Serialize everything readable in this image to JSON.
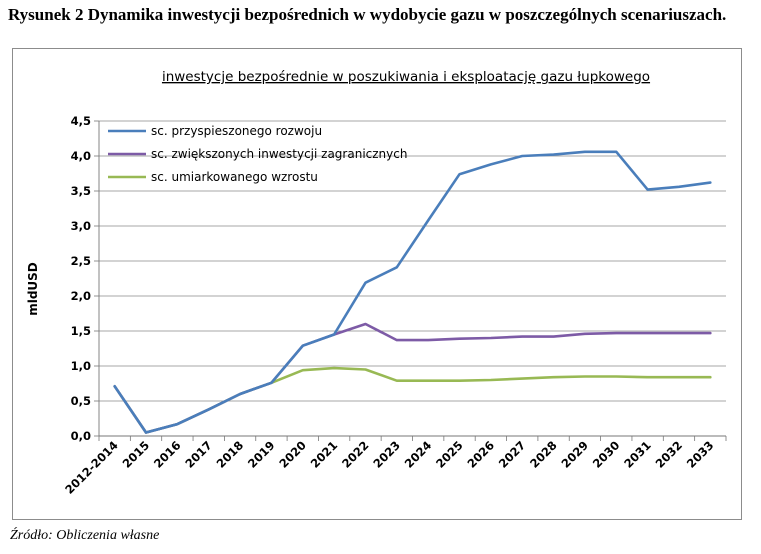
{
  "figure": {
    "caption": "Rysunek 2 Dynamika inwestycji bezpośrednich w wydobycie gazu w poszczególnych scenariuszach.",
    "source": "Źródło: Obliczenia własne"
  },
  "chart_data": {
    "type": "line",
    "title": "inwestycje bezpośrednie w poszukiwania i eksploatację gazu łupkowego",
    "xlabel": "",
    "ylabel": "mldUSD",
    "ylim": [
      0,
      4.5
    ],
    "yticks": [
      "0,0",
      "0,5",
      "1,0",
      "1,5",
      "2,0",
      "2,5",
      "3,0",
      "3,5",
      "4,0",
      "4,5"
    ],
    "grid": true,
    "legend_position": "top-left",
    "categories": [
      "2012-2014",
      "2015",
      "2016",
      "2017",
      "2018",
      "2019",
      "2020",
      "2021",
      "2022",
      "2023",
      "2024",
      "2025",
      "2026",
      "2027",
      "2028",
      "2029",
      "2030",
      "2031",
      "2032",
      "2033"
    ],
    "series": [
      {
        "name": "sc. przyspieszonego rozwoju",
        "color": "#4a7ebb",
        "values": [
          0.71,
          0.05,
          0.17,
          0.38,
          0.6,
          0.76,
          1.29,
          1.45,
          2.19,
          2.41,
          3.08,
          3.74,
          3.88,
          4.0,
          4.02,
          4.06,
          4.06,
          3.52,
          3.56,
          3.62
        ]
      },
      {
        "name": "sc. zwiększonych inwestycji zagranicznych",
        "color": "#7d5ba6",
        "values": [
          0.71,
          0.05,
          0.17,
          0.38,
          0.6,
          0.76,
          1.29,
          1.45,
          1.6,
          1.37,
          1.37,
          1.39,
          1.4,
          1.42,
          1.42,
          1.46,
          1.47,
          1.47,
          1.47,
          1.47
        ]
      },
      {
        "name": "sc. umiarkowanego wzrostu",
        "color": "#98b954",
        "values": [
          0.71,
          0.05,
          0.17,
          0.38,
          0.6,
          0.76,
          0.94,
          0.97,
          0.95,
          0.79,
          0.79,
          0.79,
          0.8,
          0.82,
          0.84,
          0.85,
          0.85,
          0.84,
          0.84,
          0.84
        ]
      }
    ]
  }
}
